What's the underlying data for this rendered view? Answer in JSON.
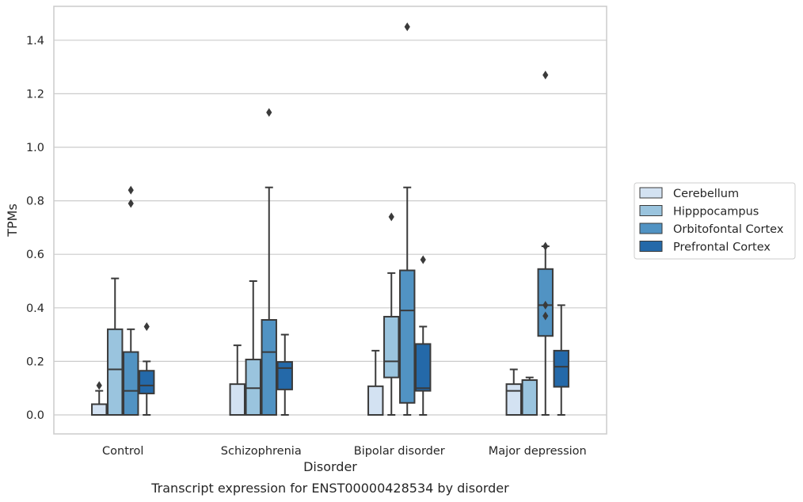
{
  "caption": "Transcript expression for ENST00000428534 by disorder",
  "chart_data": {
    "type": "box",
    "xlabel": "Disorder",
    "ylabel": "TPMs",
    "ylim": [
      -0.07,
      1.52
    ],
    "yticks": [
      "0.0",
      "0.2",
      "0.4",
      "0.6",
      "0.8",
      "1.0",
      "1.2",
      "1.4"
    ],
    "categories": [
      "Control",
      "Schizophrenia",
      "Bipolar disorder",
      "Major depression"
    ],
    "grid": "horizontal",
    "legend_position": "right",
    "series": [
      {
        "name": "Cerebellum",
        "color": "#d3e2f2",
        "boxes": [
          {
            "q1": 0.0,
            "median": 0.0,
            "q3": 0.04,
            "wlo": 0.0,
            "whi": 0.09,
            "outliers": [
              0.11
            ]
          },
          {
            "q1": 0.0,
            "median": 0.0,
            "q3": 0.115,
            "wlo": 0.0,
            "whi": 0.26,
            "outliers": []
          },
          {
            "q1": 0.0,
            "median": 0.0,
            "q3": 0.107,
            "wlo": 0.0,
            "whi": 0.24,
            "outliers": []
          },
          {
            "q1": 0.0,
            "median": 0.09,
            "q3": 0.115,
            "wlo": 0.0,
            "whi": 0.17,
            "outliers": []
          }
        ]
      },
      {
        "name": "Hipppocampus",
        "color": "#9ac4de",
        "boxes": [
          {
            "q1": 0.0,
            "median": 0.17,
            "q3": 0.32,
            "wlo": 0.0,
            "whi": 0.51,
            "outliers": []
          },
          {
            "q1": 0.0,
            "median": 0.1,
            "q3": 0.207,
            "wlo": 0.0,
            "whi": 0.5,
            "outliers": []
          },
          {
            "q1": 0.14,
            "median": 0.2,
            "q3": 0.367,
            "wlo": 0.0,
            "whi": 0.53,
            "outliers": [
              0.74
            ]
          },
          {
            "q1": 0.0,
            "median": 0.13,
            "q3": 0.13,
            "wlo": 0.0,
            "whi": 0.14,
            "outliers": []
          }
        ]
      },
      {
        "name": "Orbitofontal Cortex",
        "color": "#5193c3",
        "boxes": [
          {
            "q1": 0.0,
            "median": 0.09,
            "q3": 0.235,
            "wlo": 0.0,
            "whi": 0.32,
            "outliers": [
              0.79,
              0.84
            ]
          },
          {
            "q1": 0.0,
            "median": 0.235,
            "q3": 0.355,
            "wlo": 0.0,
            "whi": 0.85,
            "outliers": [
              1.13
            ]
          },
          {
            "q1": 0.045,
            "median": 0.39,
            "q3": 0.54,
            "wlo": 0.0,
            "whi": 0.85,
            "outliers": [
              1.45
            ]
          },
          {
            "q1": 0.295,
            "median": 0.41,
            "q3": 0.545,
            "wlo": 0.0,
            "whi": 0.63,
            "outliers": [
              0.37,
              0.41,
              0.63,
              1.27
            ]
          }
        ]
      },
      {
        "name": "Prefrontal Cortex",
        "color": "#2469a9",
        "boxes": [
          {
            "q1": 0.08,
            "median": 0.11,
            "q3": 0.165,
            "wlo": 0.0,
            "whi": 0.2,
            "outliers": [
              0.33
            ]
          },
          {
            "q1": 0.095,
            "median": 0.175,
            "q3": 0.198,
            "wlo": 0.0,
            "whi": 0.3,
            "outliers": []
          },
          {
            "q1": 0.09,
            "median": 0.1,
            "q3": 0.265,
            "wlo": 0.0,
            "whi": 0.33,
            "outliers": [
              0.58
            ]
          },
          {
            "q1": 0.105,
            "median": 0.18,
            "q3": 0.24,
            "wlo": 0.0,
            "whi": 0.41,
            "outliers": []
          }
        ]
      }
    ]
  }
}
